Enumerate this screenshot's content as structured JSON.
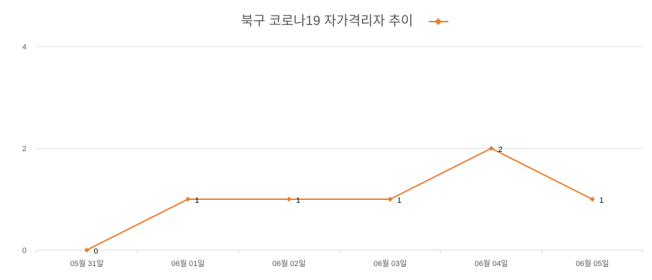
{
  "chart_data": {
    "type": "line",
    "title": "북구 코로나19 자가격리자 추이",
    "categories": [
      "05월 31일",
      "06월 01일",
      "06월 02일",
      "06월 03일",
      "06월 04일",
      "06월 05일"
    ],
    "series": [
      {
        "values": [
          0,
          1,
          1,
          1,
          2,
          1
        ],
        "color": "#ED7D31"
      }
    ],
    "y_ticks": [
      0,
      2,
      4
    ],
    "ylim": [
      0,
      4
    ],
    "grid": true,
    "legend": "top-right",
    "data_labels": true
  }
}
